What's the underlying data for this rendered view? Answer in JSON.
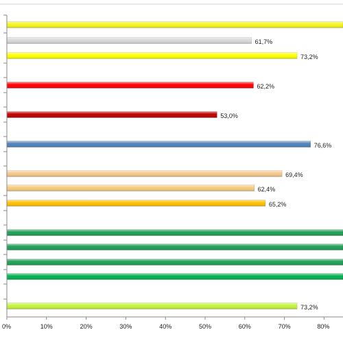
{
  "chart_data": {
    "type": "bar",
    "orientation": "horizontal",
    "xlim": [
      0,
      85
    ],
    "grid": false,
    "legend": "none",
    "x_ticks": [
      "0%",
      "10%",
      "20%",
      "30%",
      "40%",
      "50%",
      "60%",
      "70%",
      "80%"
    ],
    "x_tick_values": [
      0,
      10,
      20,
      30,
      40,
      50,
      60,
      70,
      80
    ],
    "bars": [
      {
        "value": 85.0,
        "label": "",
        "color": "#f5f51a"
      },
      {
        "value": 61.7,
        "label": "61,7%",
        "color": "#d9d9d9"
      },
      {
        "value": 73.2,
        "label": "73,2%",
        "color": "#ffff00"
      },
      {
        "value": 62.2,
        "label": "62,2%",
        "color": "#ff0000"
      },
      {
        "value": 53.0,
        "label": "53,0%",
        "color": "#c00000"
      },
      {
        "value": 76.6,
        "label": "76,6%",
        "color": "#4f81bd"
      },
      {
        "value": 69.4,
        "label": "69,4%",
        "color": "#f6c88a"
      },
      {
        "value": 62.4,
        "label": "62,4%",
        "color": "#f7c97e"
      },
      {
        "value": 65.2,
        "label": "65,2%",
        "color": "#ffc000"
      },
      {
        "value": 85.0,
        "label": "",
        "color": "#1e9e55"
      },
      {
        "value": 85.0,
        "label": "",
        "color": "#1e9e55"
      },
      {
        "value": 85.0,
        "label": "",
        "color": "#1e9e55"
      },
      {
        "value": 85.0,
        "label": "",
        "color": "#00b050"
      },
      {
        "value": 73.2,
        "label": "73,2%",
        "color": "#c4f53c"
      }
    ]
  }
}
